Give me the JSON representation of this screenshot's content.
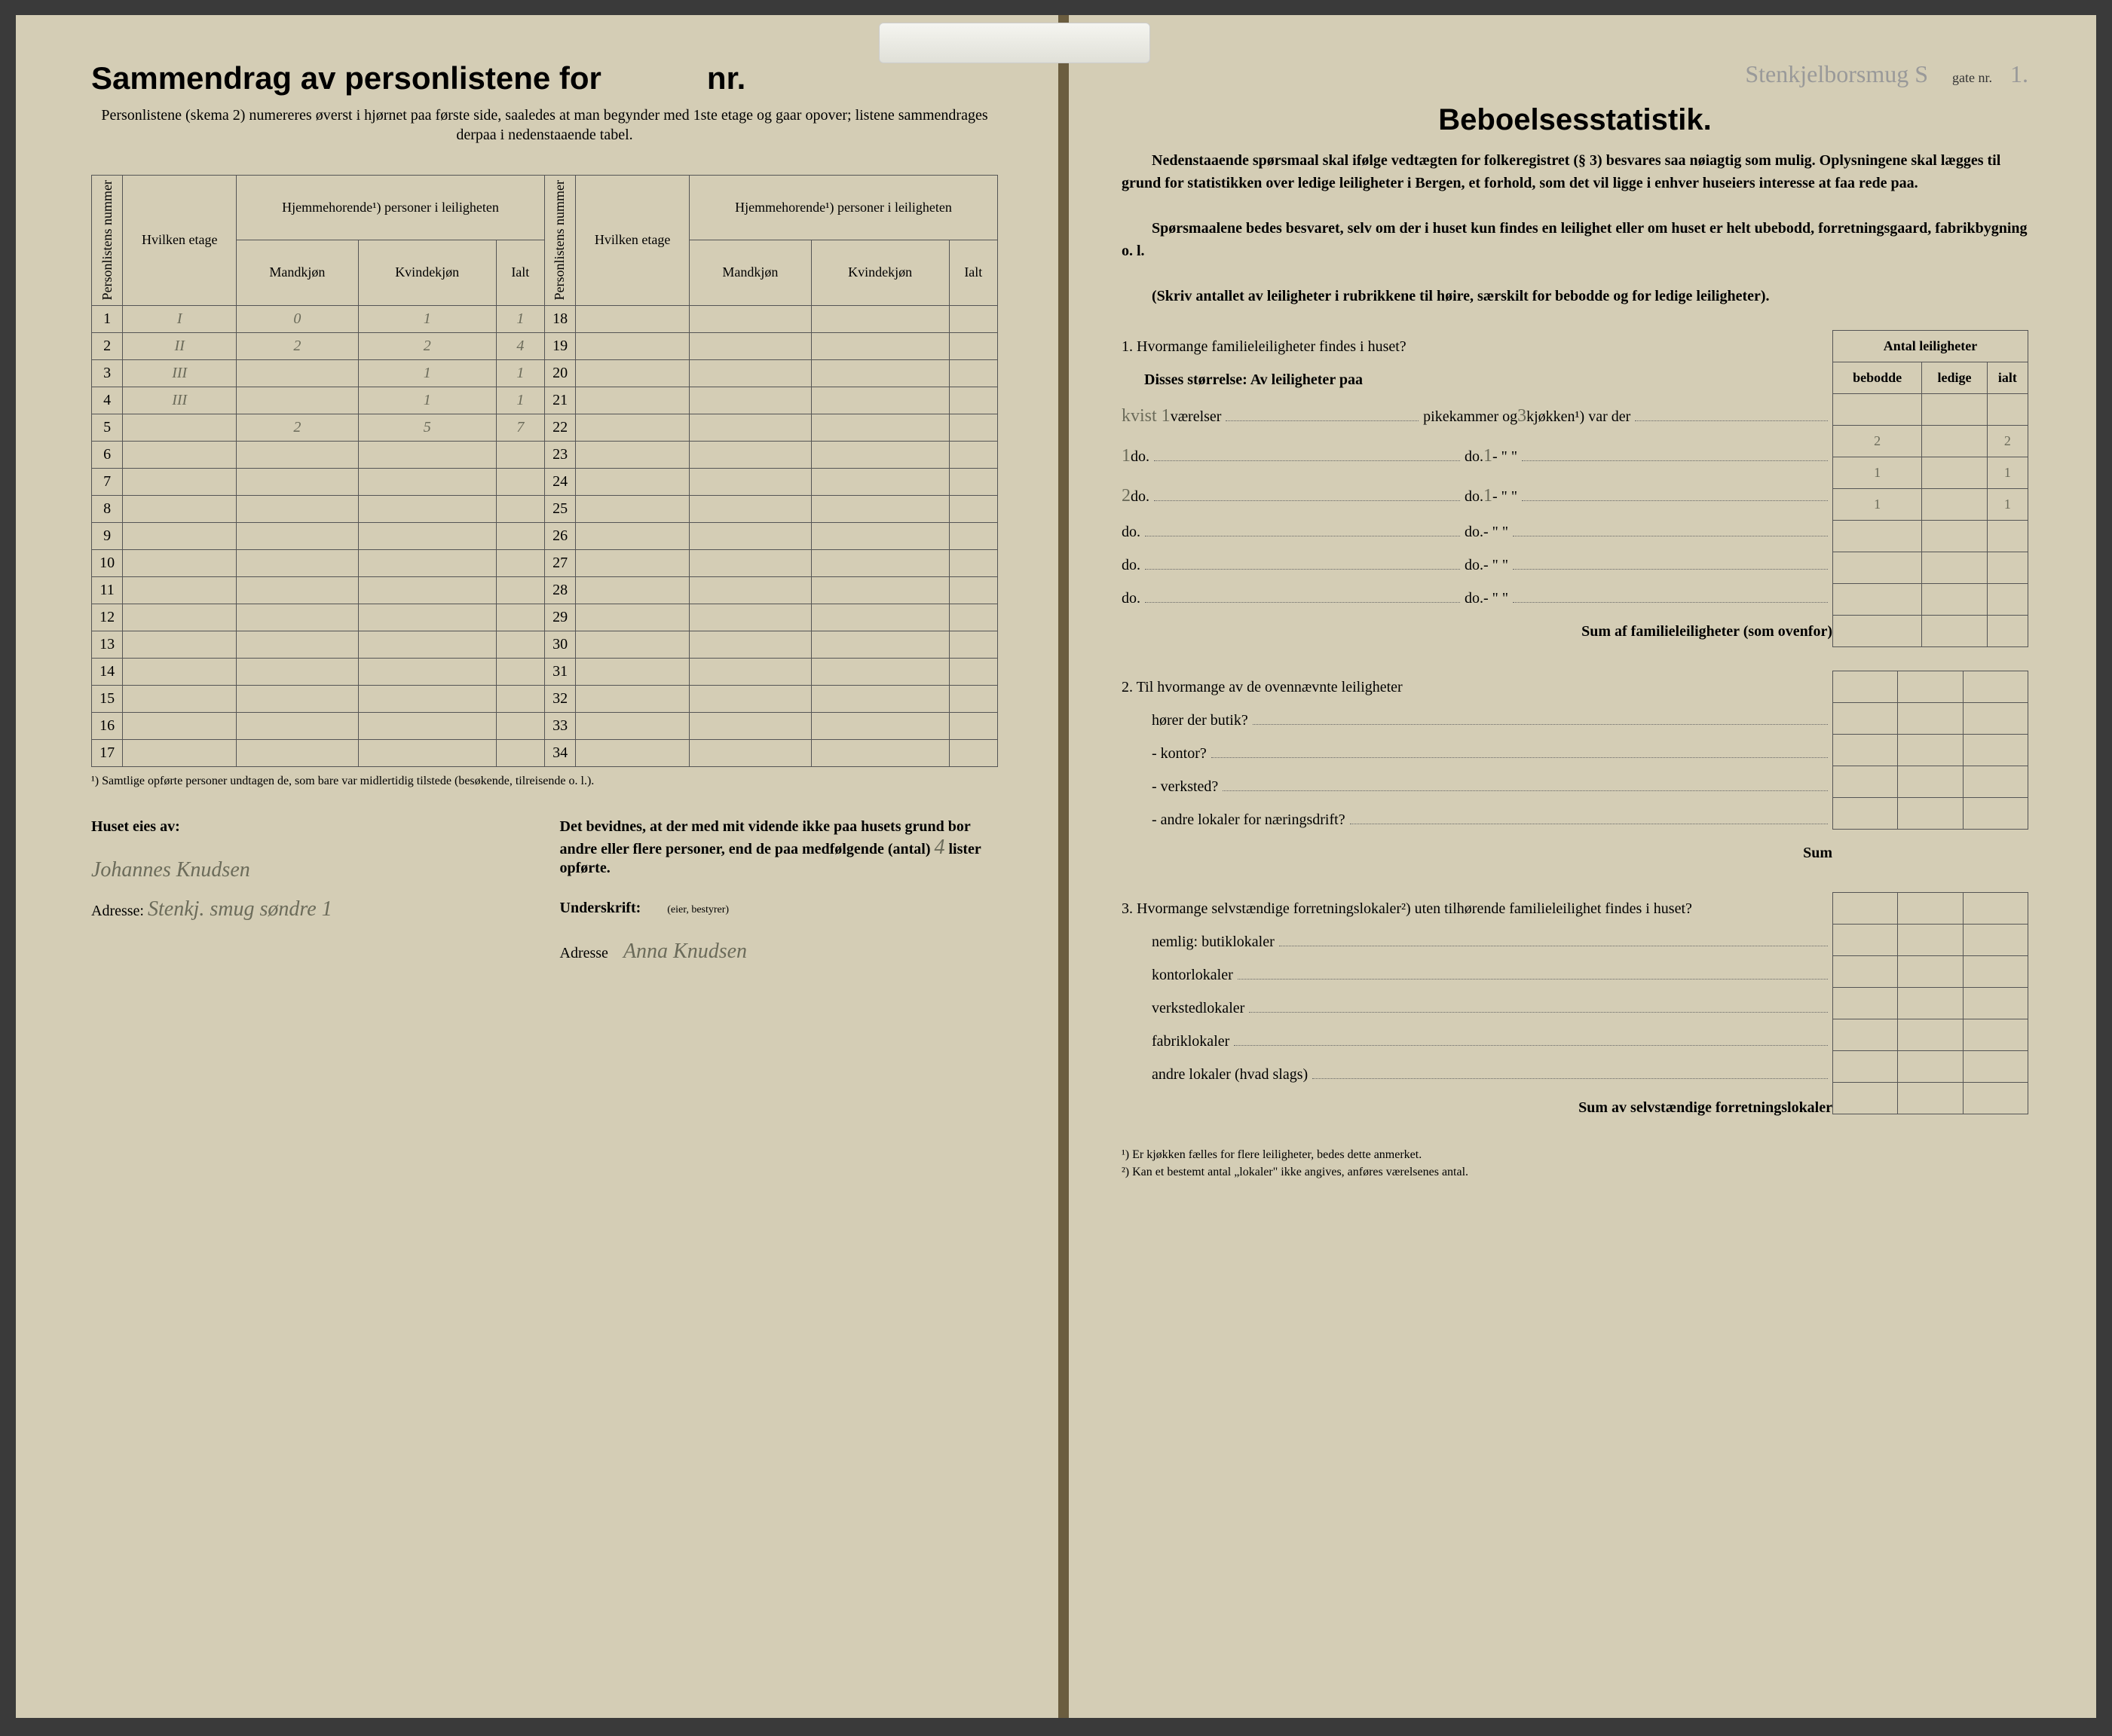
{
  "left": {
    "title": "Sammendrag av personlistene for",
    "title_suffix": "nr.",
    "subtitle": "Personlistene (skema 2) numereres øverst i hjørnet paa første side, saaledes at man begynder med 1ste etage og gaar opover; listene sammendrages derpaa i nedenstaaende tabel.",
    "col_personlistens": "Personlistens nummer",
    "col_hvilken": "Hvilken etage",
    "col_hjemme": "Hjemmehorende¹) personer i leiligheten",
    "col_mand": "Mandkjøn",
    "col_kvinde": "Kvindekjøn",
    "col_ialt": "Ialt",
    "rows_left_nums": [
      "1",
      "2",
      "3",
      "4",
      "5",
      "6",
      "7",
      "8",
      "9",
      "10",
      "11",
      "12",
      "13",
      "14",
      "15",
      "16",
      "17"
    ],
    "rows_right_nums": [
      "18",
      "19",
      "20",
      "21",
      "22",
      "23",
      "24",
      "25",
      "26",
      "27",
      "28",
      "29",
      "30",
      "31",
      "32",
      "33",
      "34"
    ],
    "data_rows": [
      {
        "n": "1",
        "etage": "I",
        "m": "0",
        "k": "1",
        "i": "1"
      },
      {
        "n": "2",
        "etage": "II",
        "m": "2",
        "k": "2",
        "i": "4"
      },
      {
        "n": "3",
        "etage": "III",
        "m": "",
        "k": "1",
        "i": "1"
      },
      {
        "n": "4",
        "etage": "III",
        "m": "",
        "k": "1",
        "i": "1"
      },
      {
        "n": "5",
        "etage": "",
        "m": "2",
        "k": "5",
        "i": "7"
      }
    ],
    "footnote": "¹) Samtlige opførte personer undtagen de, som bare var midlertidig tilstede (besøkende, tilreisende o. l.).",
    "attest_left_label": "Huset eies av:",
    "attest_left_sig": "Johannes Knudsen",
    "attest_left_addr_label": "Adresse:",
    "attest_left_addr": "Stenkj. smug søndre 1",
    "attest_right_text": "Det bevidnes, at der med mit vidende ikke paa husets grund bor andre eller flere personer, end de paa medfølgende (antal)",
    "attest_right_count": "4",
    "attest_right_text2": "lister opførte.",
    "attest_right_under": "Underskrift:",
    "attest_right_role": "(eier, bestyrer)",
    "attest_right_addr_label": "Adresse",
    "attest_right_sig": "Anna Knudsen"
  },
  "right": {
    "header_street": "Stenkjelborsmug S",
    "header_gate": "gate nr.",
    "header_nr": "1.",
    "title": "Beboelsesstatistik.",
    "para1": "Nedenstaaende spørsmaal skal ifølge vedtægten for folkeregistret (§ 3) besvares saa nøiagtig som mulig. Oplysningene skal lægges til grund for statistikken over ledige leiligheter i Bergen, et forhold, som det vil ligge i enhver huseiers interesse at faa rede paa.",
    "para2": "Spørsmaalene bedes besvaret, selv om der i huset kun findes en leilighet eller om huset er helt ubebodd, forretningsgaard, fabrikbygning o. l.",
    "para3": "(Skriv antallet av leiligheter i rubrikkene til høire, særskilt for bebodde og for ledige leiligheter).",
    "tbl_header": "Antal leiligheter",
    "tbl_bebodde": "bebodde",
    "tbl_ledige": "ledige",
    "tbl_ialt": "ialt",
    "q1_title": "1. Hvormange familieleiligheter findes i huset?",
    "q1_sub": "Disses størrelse: Av leiligheter paa",
    "q1_rows": [
      {
        "pre": "kvist 1",
        "a": "værelser",
        "b": "pikekammer og",
        "c": "3",
        "d": "kjøkken¹) var der",
        "beb": "2",
        "led": "",
        "ialt": "2"
      },
      {
        "pre": "1",
        "a": "do.",
        "b": "do.",
        "c": "1",
        "d": "- \" \"",
        "beb": "1",
        "led": "",
        "ialt": "1"
      },
      {
        "pre": "2",
        "a": "do.",
        "b": "do.",
        "c": "1",
        "d": "- \" \"",
        "beb": "1",
        "led": "",
        "ialt": "1"
      },
      {
        "pre": "",
        "a": "do.",
        "b": "do.",
        "c": "",
        "d": "- \" \"",
        "beb": "",
        "led": "",
        "ialt": ""
      },
      {
        "pre": "",
        "a": "do.",
        "b": "do.",
        "c": "",
        "d": "- \" \"",
        "beb": "",
        "led": "",
        "ialt": ""
      },
      {
        "pre": "",
        "a": "do.",
        "b": "do.",
        "c": "",
        "d": "- \" \"",
        "beb": "",
        "led": "",
        "ialt": ""
      }
    ],
    "q1_sum": "Sum af familieleiligheter (som ovenfor)",
    "q2_title": "2. Til hvormange av de ovennævnte leiligheter",
    "q2_lines": [
      "hører der butik?",
      "- kontor?",
      "- verksted?",
      "- andre lokaler for næringsdrift?"
    ],
    "q2_sum": "Sum",
    "q3_title": "3. Hvormange selvstændige forretningslokaler²) uten tilhørende familieleilighet findes i huset?",
    "q3_lines": [
      "nemlig: butiklokaler",
      "kontorlokaler",
      "verkstedlokaler",
      "fabriklokaler",
      "andre lokaler (hvad slags)"
    ],
    "q3_sum": "Sum av selvstændige forretningslokaler",
    "fn1": "¹) Er kjøkken fælles for flere leiligheter, bedes dette anmerket.",
    "fn2": "²) Kan et bestemt antal „lokaler\" ikke angives, anføres værelsenes antal."
  },
  "colors": {
    "paper": "#d4cdb5",
    "ink": "#333333",
    "pencil": "#6b6b5a",
    "border": "#555555"
  }
}
